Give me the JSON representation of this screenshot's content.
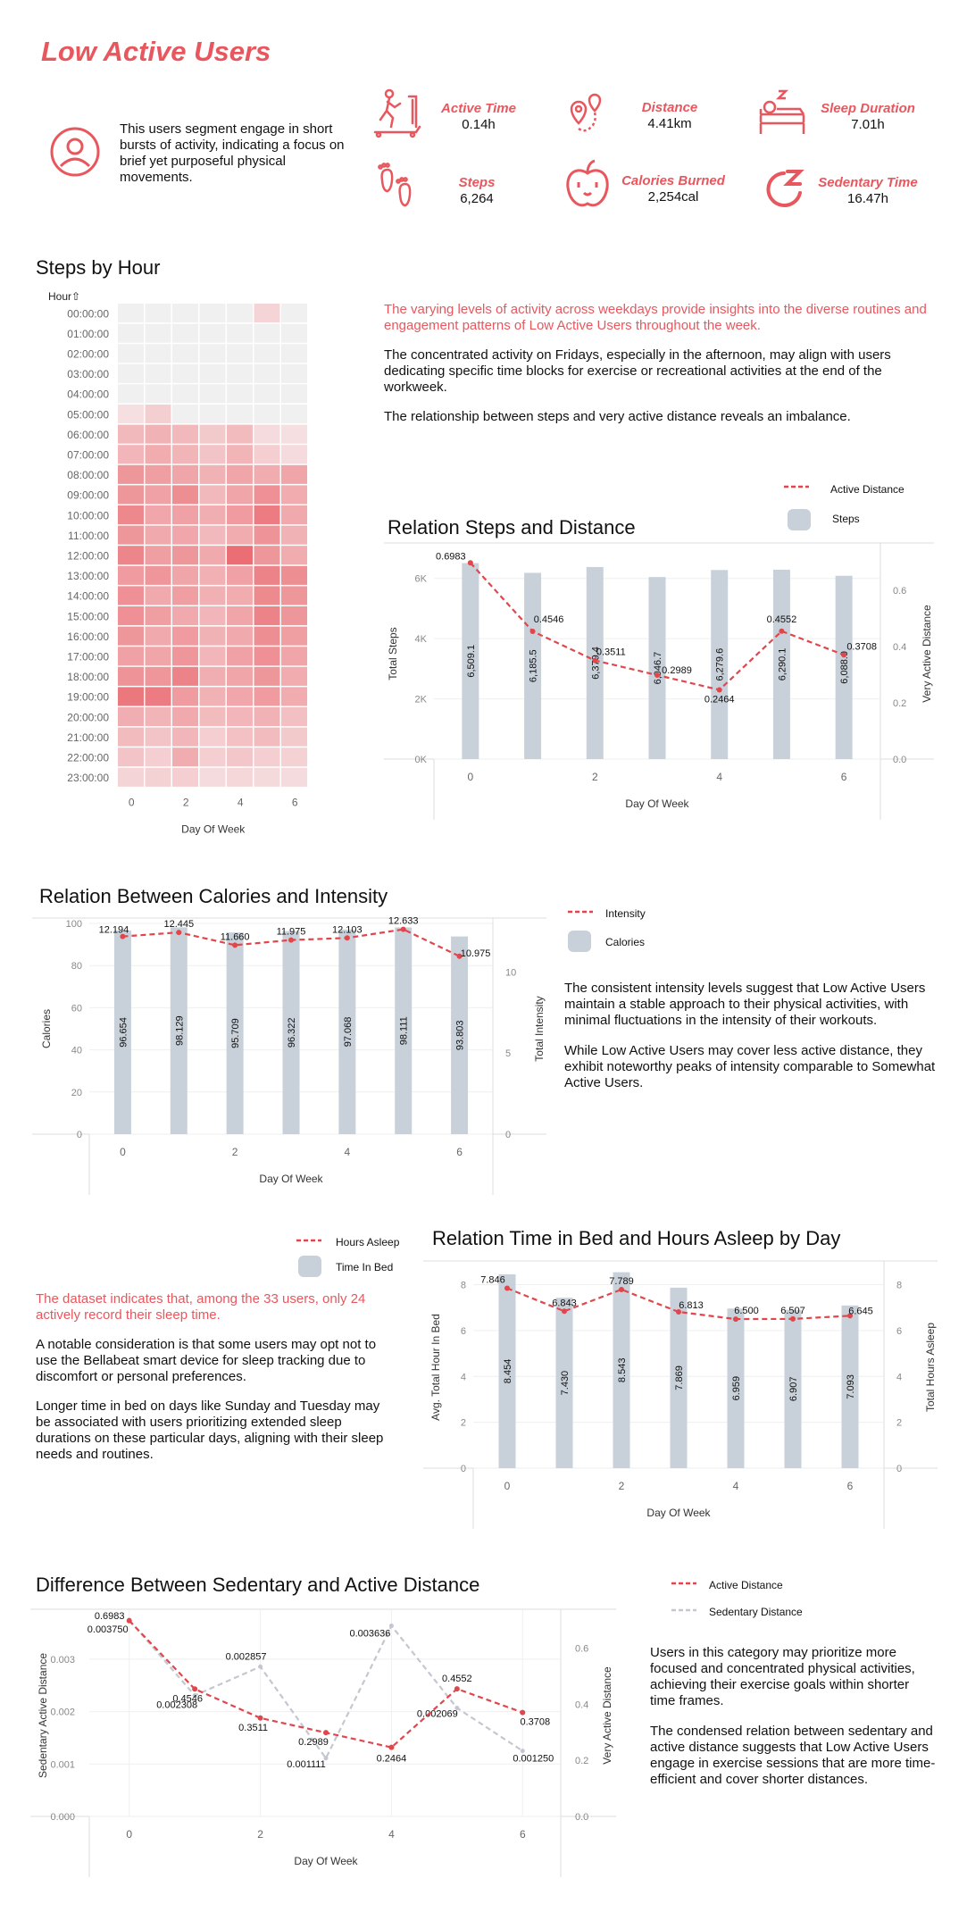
{
  "header": {
    "title": "Low Active Users",
    "description": "This users segment engage in short bursts of activity, indicating a focus on brief yet purposeful physical movements.",
    "kpis": [
      {
        "label": "Active Time",
        "value": "0.14h",
        "icon": "treadmill-icon"
      },
      {
        "label": "Distance",
        "value": "4.41km",
        "icon": "map-route-icon"
      },
      {
        "label": "Sleep Duration",
        "value": "7.01h",
        "icon": "sleeping-person-icon"
      },
      {
        "label": "Steps",
        "value": "6,264",
        "icon": "footprints-icon"
      },
      {
        "label": "Calories Burned",
        "value": "2,254cal",
        "icon": "apple-icon"
      },
      {
        "label": "Sedentary Time",
        "value": "16.47h",
        "icon": "sleep-z-icon"
      }
    ]
  },
  "steps_section": {
    "title": "Steps by Hour",
    "text_red": "The varying levels of activity across weekdays provide insights into the diverse routines and engagement patterns of Low Active Users throughout the week.",
    "text_1": "The concentrated activity on Fridays, especially in the afternoon, may align with users dedicating specific time blocks for exercise or recreational activities at the end of the workweek.",
    "text_2": "The relationship between steps and very active distance reveals an imbalance."
  },
  "calories_section": {
    "text_1": "The consistent intensity levels suggest that Low Active Users maintain a stable approach to their physical activities, with minimal fluctuations in the intensity of their workouts.",
    "text_2": "While Low Active Users may cover less active distance, they exhibit noteworthy peaks of intensity comparable to Somewhat Active Users."
  },
  "sleep_section": {
    "text_red": "The dataset indicates that, among the 33 users, only 24 actively record their sleep time.",
    "text_1": "A notable consideration is that some users may opt not to use the Bellabeat smart device for sleep tracking due to discomfort or personal preferences.",
    "text_2": "Longer time in bed on days like Sunday and Tuesday may be associated with users prioritizing extended sleep durations on these particular days, aligning with their sleep needs and routines."
  },
  "sedentary_section": {
    "text_1": "Users in this category may prioritize more focused and concentrated physical activities, achieving their exercise goals within shorter time frames.",
    "text_2": "The condensed relation between sedentary and active distance suggests that Low Active Users engage in exercise sessions that are more time-efficient and cover shorter distances."
  },
  "colors": {
    "accent": "#e8575e",
    "bar": "#c8d1da",
    "line": "#e0464c",
    "sedentary": "#c4c7cf",
    "grid": "#e6e6e6"
  },
  "chart_data": [
    {
      "type": "heatmap",
      "title": "Steps by Hour",
      "xlabel": "Day Of Week",
      "ylabel": "Hour",
      "ylabel_arrow": "⇧",
      "x": [
        0,
        1,
        2,
        3,
        4,
        5,
        6
      ],
      "x_ticks": [
        0,
        2,
        4,
        6
      ],
      "y": [
        "00:00:00",
        "01:00:00",
        "02:00:00",
        "03:00:00",
        "04:00:00",
        "05:00:00",
        "06:00:00",
        "07:00:00",
        "08:00:00",
        "09:00:00",
        "10:00:00",
        "11:00:00",
        "12:00:00",
        "13:00:00",
        "14:00:00",
        "15:00:00",
        "16:00:00",
        "17:00:00",
        "18:00:00",
        "19:00:00",
        "20:00:00",
        "21:00:00",
        "22:00:00",
        "23:00:00"
      ],
      "intensity": [
        [
          0.0,
          0.0,
          0.0,
          0.0,
          0.0,
          0.1,
          0.0
        ],
        [
          0.0,
          0.0,
          0.0,
          0.0,
          0.0,
          0.0,
          0.0
        ],
        [
          0.0,
          0.0,
          0.0,
          0.0,
          0.0,
          0.0,
          0.0
        ],
        [
          0.0,
          0.0,
          0.0,
          0.0,
          0.0,
          0.0,
          0.0
        ],
        [
          0.0,
          0.0,
          0.0,
          0.0,
          0.0,
          0.0,
          0.0
        ],
        [
          0.02,
          0.14,
          0.0,
          0.0,
          0.0,
          0.0,
          0.0
        ],
        [
          0.3,
          0.35,
          0.3,
          0.18,
          0.28,
          0.05,
          0.02
        ],
        [
          0.32,
          0.4,
          0.34,
          0.22,
          0.34,
          0.15,
          0.05
        ],
        [
          0.55,
          0.5,
          0.45,
          0.35,
          0.45,
          0.4,
          0.45
        ],
        [
          0.55,
          0.48,
          0.62,
          0.3,
          0.45,
          0.6,
          0.4
        ],
        [
          0.66,
          0.44,
          0.48,
          0.38,
          0.52,
          0.75,
          0.42
        ],
        [
          0.55,
          0.42,
          0.44,
          0.3,
          0.4,
          0.58,
          0.35
        ],
        [
          0.68,
          0.5,
          0.55,
          0.42,
          0.85,
          0.55,
          0.4
        ],
        [
          0.52,
          0.56,
          0.45,
          0.36,
          0.48,
          0.7,
          0.62
        ],
        [
          0.6,
          0.42,
          0.5,
          0.36,
          0.4,
          0.65,
          0.55
        ],
        [
          0.6,
          0.5,
          0.42,
          0.32,
          0.45,
          0.7,
          0.55
        ],
        [
          0.55,
          0.42,
          0.52,
          0.35,
          0.42,
          0.62,
          0.5
        ],
        [
          0.48,
          0.45,
          0.56,
          0.32,
          0.48,
          0.6,
          0.45
        ],
        [
          0.58,
          0.56,
          0.7,
          0.38,
          0.45,
          0.55,
          0.4
        ],
        [
          0.78,
          0.75,
          0.52,
          0.35,
          0.44,
          0.52,
          0.4
        ],
        [
          0.38,
          0.34,
          0.42,
          0.28,
          0.32,
          0.35,
          0.26
        ],
        [
          0.28,
          0.22,
          0.32,
          0.15,
          0.25,
          0.28,
          0.18
        ],
        [
          0.22,
          0.15,
          0.4,
          0.15,
          0.2,
          0.15,
          0.12
        ],
        [
          0.1,
          0.12,
          0.15,
          0.05,
          0.08,
          0.06,
          0.05
        ]
      ]
    },
    {
      "type": "bar",
      "title": "Relation Steps and Distance",
      "xlabel": "Day Of Week",
      "ylabel": "Total Steps",
      "y2label": "Very Active Distance",
      "categories": [
        0,
        1,
        2,
        3,
        4,
        5,
        6
      ],
      "x_ticks": [
        0,
        2,
        4,
        6
      ],
      "ylim": [
        0,
        7000
      ],
      "y_ticks": [
        "0K",
        "2K",
        "4K",
        "6K"
      ],
      "y2lim": [
        0,
        0.75
      ],
      "y2_ticks": [
        "0.0",
        "0.2",
        "0.4",
        "0.6"
      ],
      "series": [
        {
          "name": "Steps",
          "values": [
            6509.1,
            6185.5,
            6379.4,
            6046.7,
            6279.6,
            6290.1,
            6088.0
          ],
          "labels": [
            "6,509.1",
            "6,185.5",
            "6,379.4",
            "6,046.7",
            "6,279.6",
            "6,290.1",
            "6,088.0"
          ]
        },
        {
          "name": "Active Distance",
          "values": [
            0.6983,
            0.4546,
            0.3511,
            0.2989,
            0.2464,
            0.4552,
            0.3708
          ],
          "labels": [
            "0.6983",
            "0.4546",
            "0.3511",
            "0.2989",
            "0.2464",
            "0.4552",
            "0.3708"
          ]
        }
      ],
      "legend": "top-right"
    },
    {
      "type": "bar",
      "title": "Relation Between Calories and Intensity",
      "xlabel": "Day Of Week",
      "ylabel": "Calories",
      "y2label": "Total Intensity",
      "categories": [
        0,
        1,
        2,
        3,
        4,
        5,
        6
      ],
      "x_ticks": [
        0,
        2,
        4,
        6
      ],
      "ylim": [
        0,
        100
      ],
      "y_ticks": [
        "0",
        "20",
        "40",
        "60",
        "80",
        "100"
      ],
      "y2lim": [
        0,
        13
      ],
      "y2_ticks": [
        "0",
        "5",
        "10"
      ],
      "series": [
        {
          "name": "Calories",
          "values": [
            96.654,
            98.129,
            95.709,
            96.322,
            97.068,
            98.111,
            93.803
          ],
          "labels": [
            "96.654",
            "98.129",
            "95.709",
            "96.322",
            "97.068",
            "98.111",
            "93.803"
          ]
        },
        {
          "name": "Intensity",
          "values": [
            12.194,
            12.445,
            11.66,
            11.975,
            12.103,
            12.633,
            10.975
          ],
          "labels": [
            "12.194",
            "12.445",
            "11.660",
            "11.975",
            "12.103",
            "12.633",
            "10.975"
          ]
        }
      ],
      "legend": "right"
    },
    {
      "type": "bar",
      "title": "Relation Time in Bed and Hours Asleep by Day",
      "xlabel": "Day Of Week",
      "ylabel": "Avg. Total Hour In Bed",
      "y2label": "Total Hours Asleep",
      "categories": [
        0,
        1,
        2,
        3,
        4,
        5,
        6
      ],
      "x_ticks": [
        0,
        2,
        4,
        6
      ],
      "ylim": [
        0,
        8.8
      ],
      "y_ticks": [
        "0",
        "2",
        "4",
        "6",
        "8"
      ],
      "y2lim": [
        0,
        8.8
      ],
      "y2_ticks": [
        "0",
        "2",
        "4",
        "6",
        "8"
      ],
      "series": [
        {
          "name": "Time In Bed",
          "values": [
            8.454,
            7.43,
            8.543,
            7.869,
            6.959,
            6.907,
            7.093
          ],
          "labels": [
            "8.454",
            "7.430",
            "8.543",
            "7.869",
            "6.959",
            "6.907",
            "7.093"
          ]
        },
        {
          "name": "Hours Asleep",
          "values": [
            7.846,
            6.843,
            7.789,
            6.813,
            6.5,
            6.507,
            6.645
          ],
          "labels": [
            "7.846",
            "6.843",
            "7.789",
            "6.813",
            "6.500",
            "6.507",
            "6.645"
          ]
        }
      ],
      "legend": "left"
    },
    {
      "type": "line",
      "title": "Difference Between Sedentary and Active Distance",
      "xlabel": "Day Of Week",
      "ylabel": "Sedentary Active Distance",
      "y2label": "Very Active Distance",
      "x": [
        0,
        1,
        2,
        3,
        4,
        5,
        6
      ],
      "x_ticks": [
        0,
        2,
        4,
        6
      ],
      "ylim": [
        0,
        0.00385
      ],
      "y_ticks": [
        "0.000",
        "0.001",
        "0.002",
        "0.003"
      ],
      "y2lim": [
        0,
        0.72
      ],
      "y2_ticks": [
        "0.0",
        "0.2",
        "0.4",
        "0.6"
      ],
      "series": [
        {
          "name": "Active Distance",
          "values": [
            0.6983,
            0.4546,
            0.3511,
            0.2989,
            0.2464,
            0.4552,
            0.3708
          ],
          "labels": [
            "0.6983",
            "0.4546",
            "0.3511",
            "0.2989",
            "0.2464",
            "0.4552",
            "0.3708"
          ]
        },
        {
          "name": "Sedentary Distance",
          "values": [
            0.00375,
            0.002308,
            0.002857,
            0.001111,
            0.003636,
            0.002069,
            0.00125
          ],
          "labels": [
            "0.003750",
            "0.002308",
            "0.002857",
            "0.001111",
            "0.003636",
            "0.002069",
            "0.001250"
          ]
        }
      ],
      "legend": "top-right"
    }
  ]
}
